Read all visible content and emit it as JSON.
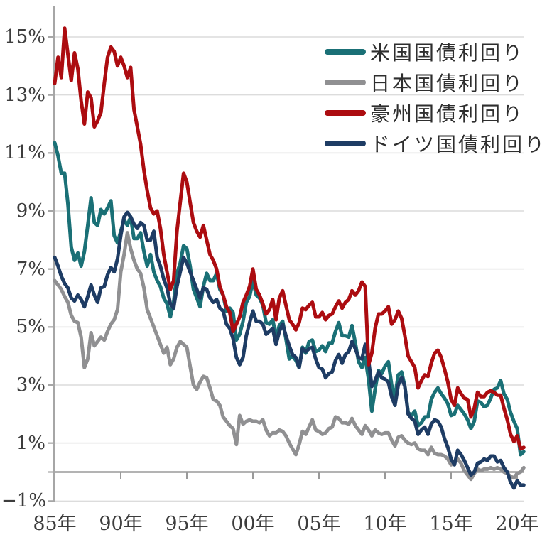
{
  "legend": {
    "items": [
      {
        "label": "米国国債利回り",
        "color": "#1a7076"
      },
      {
        "label": "日本国債利回り",
        "color": "#909092"
      },
      {
        "label": "豪州国債利回り",
        "color": "#ac0c10"
      },
      {
        "label": "ドイツ国債利回り",
        "color": "#1e3c64"
      }
    ]
  },
  "axes": {
    "y": {
      "ticks": [
        {
          "label": "15%",
          "value": 15
        },
        {
          "label": "13%",
          "value": 13
        },
        {
          "label": "11%",
          "value": 11
        },
        {
          "label": "9%",
          "value": 9
        },
        {
          "label": "7%",
          "value": 7
        },
        {
          "label": "5%",
          "value": 5
        },
        {
          "label": "3%",
          "value": 3
        },
        {
          "label": "1%",
          "value": 1
        },
        {
          "label": "−1%",
          "value": -1
        }
      ]
    },
    "x": {
      "ticks": [
        {
          "label": "85年",
          "year": 1985
        },
        {
          "label": "90年",
          "year": 1990
        },
        {
          "label": "95年",
          "year": 1995
        },
        {
          "label": "00年",
          "year": 2000
        },
        {
          "label": "05年",
          "year": 2005
        },
        {
          "label": "10年",
          "year": 2010
        },
        {
          "label": "15年",
          "year": 2015
        },
        {
          "label": "20年",
          "year": 2020
        }
      ]
    }
  },
  "chart_data": {
    "type": "line",
    "title": "",
    "xlabel": "",
    "ylabel": "",
    "ylim": [
      -1.4,
      15.6
    ],
    "x_start_year": 1985.0,
    "x_step_years": 0.25,
    "x_end_year": 2020.5,
    "grid": true,
    "gridline_values": [
      15,
      13,
      11,
      9,
      7,
      5,
      3,
      1,
      -1
    ],
    "zero_line_value": 0,
    "legend_position": "top-right",
    "colors": {
      "grid": "#dcdcdc",
      "axis": "#a6a6a6",
      "zero_line": "#9a9a9a"
    },
    "z_order": [
      1,
      0,
      3,
      2
    ],
    "series": [
      {
        "name": "米国国債利回り",
        "color": "#1a7076",
        "values": [
          11.35,
          10.9,
          10.3,
          10.3,
          9.25,
          7.75,
          7.3,
          7.55,
          7.1,
          7.6,
          8.5,
          9.45,
          8.6,
          8.5,
          9.05,
          8.9,
          9.1,
          9.35,
          8.15,
          7.9,
          8.3,
          8.7,
          8.5,
          8.8,
          8.05,
          8.05,
          8.25,
          7.6,
          7.1,
          7.5,
          6.9,
          6.6,
          6.4,
          6.0,
          5.8,
          5.35,
          5.85,
          6.85,
          7.2,
          7.8,
          7.7,
          7.1,
          6.3,
          6.0,
          5.7,
          6.4,
          6.85,
          6.6,
          6.6,
          6.85,
          6.3,
          6.1,
          5.55,
          5.65,
          5.5,
          4.55,
          4.75,
          5.2,
          5.85,
          6.05,
          6.6,
          6.1,
          6.0,
          5.75,
          5.15,
          5.1,
          5.25,
          4.65,
          5.05,
          5.2,
          4.6,
          3.9,
          4.0,
          3.85,
          3.6,
          4.3,
          4.1,
          4.5,
          4.55,
          4.15,
          4.2,
          4.35,
          4.15,
          4.45,
          4.45,
          4.85,
          5.15,
          4.7,
          4.7,
          4.65,
          5.05,
          4.45,
          3.8,
          3.6,
          3.95,
          3.2,
          2.1,
          2.85,
          3.5,
          3.4,
          3.65,
          3.8,
          3.0,
          2.6,
          3.35,
          3.45,
          2.95,
          2.05,
          1.95,
          2.1,
          1.6,
          1.7,
          1.9,
          1.9,
          2.5,
          2.75,
          2.9,
          2.7,
          2.55,
          2.35,
          1.95,
          2.0,
          2.3,
          2.15,
          2.0,
          1.8,
          1.5,
          1.75,
          2.45,
          2.4,
          2.25,
          2.3,
          2.55,
          2.85,
          2.9,
          3.15,
          2.7,
          2.5,
          2.05,
          1.75,
          1.5,
          0.6,
          0.7
        ]
      },
      {
        "name": "日本国債利回り",
        "color": "#909092",
        "values": [
          6.6,
          6.45,
          6.3,
          6.05,
          5.85,
          5.4,
          5.2,
          5.15,
          4.65,
          3.6,
          3.9,
          4.8,
          4.35,
          4.5,
          4.65,
          4.55,
          4.85,
          5.1,
          5.25,
          5.6,
          6.9,
          7.5,
          8.25,
          7.7,
          7.3,
          7.0,
          6.85,
          6.35,
          5.6,
          5.3,
          5.0,
          4.7,
          4.4,
          4.1,
          4.3,
          3.7,
          3.9,
          4.3,
          4.5,
          4.4,
          4.3,
          3.65,
          3.0,
          2.85,
          3.1,
          3.3,
          3.25,
          2.9,
          2.5,
          2.45,
          2.3,
          1.9,
          1.75,
          1.6,
          1.5,
          0.95,
          1.95,
          1.65,
          1.75,
          1.8,
          1.75,
          1.75,
          1.7,
          1.8,
          1.45,
          1.25,
          1.35,
          1.35,
          1.45,
          1.4,
          1.25,
          1.0,
          0.8,
          0.6,
          0.95,
          1.4,
          1.3,
          1.55,
          1.8,
          1.45,
          1.4,
          1.3,
          1.35,
          1.5,
          1.55,
          1.9,
          1.85,
          1.7,
          1.7,
          1.65,
          1.85,
          1.6,
          1.45,
          1.3,
          1.6,
          1.45,
          1.25,
          1.45,
          1.35,
          1.3,
          1.35,
          1.35,
          1.1,
          0.9,
          1.2,
          1.25,
          1.1,
          1.0,
          0.95,
          1.0,
          0.8,
          0.75,
          0.75,
          0.6,
          0.85,
          0.65,
          0.6,
          0.6,
          0.55,
          0.45,
          0.25,
          0.35,
          0.45,
          0.3,
          0.05,
          -0.1,
          -0.25,
          -0.05,
          0.1,
          0.05,
          0.1,
          0.1,
          0.15,
          0.1,
          0.15,
          0.1,
          0.0,
          -0.05,
          -0.15,
          -0.2,
          -0.05,
          0.0,
          0.15
        ]
      },
      {
        "name": "豪州国債利回り",
        "color": "#ac0c10",
        "values": [
          13.4,
          14.3,
          13.6,
          15.3,
          14.4,
          13.5,
          14.45,
          13.9,
          12.8,
          12.0,
          13.1,
          12.9,
          11.9,
          12.1,
          12.4,
          13.4,
          14.3,
          14.65,
          14.5,
          14.0,
          14.3,
          14.0,
          13.6,
          13.95,
          12.5,
          11.9,
          11.3,
          10.4,
          9.7,
          9.1,
          8.9,
          9.0,
          8.4,
          7.5,
          6.9,
          6.3,
          6.6,
          8.3,
          9.3,
          10.3,
          10.0,
          9.3,
          8.6,
          8.3,
          8.1,
          8.5,
          8.0,
          7.5,
          7.3,
          7.0,
          6.4,
          6.1,
          5.7,
          5.5,
          4.85,
          5.1,
          5.35,
          5.85,
          6.1,
          6.4,
          7.0,
          6.3,
          6.1,
          5.8,
          5.45,
          5.6,
          5.95,
          5.25,
          6.0,
          6.25,
          5.75,
          5.25,
          5.1,
          4.9,
          5.15,
          5.65,
          5.6,
          5.75,
          5.85,
          5.35,
          5.35,
          5.5,
          5.25,
          5.4,
          5.45,
          5.7,
          5.9,
          5.65,
          5.85,
          5.95,
          6.25,
          6.1,
          6.25,
          6.55,
          6.4,
          3.7,
          4.1,
          4.95,
          5.45,
          5.45,
          5.55,
          5.7,
          5.1,
          5.25,
          5.55,
          5.3,
          4.7,
          4.0,
          3.8,
          3.6,
          2.9,
          3.15,
          3.35,
          3.3,
          3.75,
          4.1,
          4.2,
          3.95,
          3.55,
          3.1,
          2.5,
          2.3,
          2.9,
          2.7,
          2.55,
          2.5,
          1.9,
          2.2,
          2.75,
          2.6,
          2.6,
          2.75,
          2.8,
          2.75,
          2.65,
          2.65,
          2.2,
          1.8,
          1.3,
          1.05,
          1.25,
          0.8,
          0.85
        ]
      },
      {
        "name": "ドイツ国債利回り",
        "color": "#1e3c64",
        "values": [
          7.4,
          7.1,
          6.75,
          6.5,
          6.35,
          6.0,
          5.9,
          6.1,
          5.95,
          5.7,
          6.05,
          6.45,
          6.1,
          5.85,
          6.35,
          6.4,
          6.8,
          7.05,
          6.9,
          7.35,
          8.15,
          8.8,
          8.95,
          8.8,
          8.55,
          8.4,
          8.6,
          8.5,
          8.0,
          8.0,
          8.3,
          7.4,
          7.1,
          6.65,
          6.35,
          5.8,
          5.65,
          6.4,
          6.9,
          7.4,
          7.2,
          6.9,
          6.6,
          6.3,
          6.0,
          6.35,
          6.3,
          6.0,
          5.85,
          5.95,
          5.65,
          5.55,
          5.1,
          4.95,
          4.6,
          3.95,
          3.7,
          3.95,
          4.7,
          5.15,
          5.55,
          5.2,
          5.2,
          5.1,
          4.75,
          4.85,
          4.95,
          4.4,
          4.85,
          5.1,
          4.7,
          4.35,
          4.05,
          3.95,
          3.6,
          4.25,
          4.15,
          4.25,
          4.3,
          3.9,
          3.6,
          3.55,
          3.25,
          3.4,
          3.45,
          3.85,
          4.05,
          3.75,
          4.05,
          4.15,
          4.5,
          4.25,
          3.95,
          3.9,
          4.4,
          3.85,
          2.95,
          3.15,
          3.45,
          3.25,
          3.2,
          3.1,
          2.6,
          2.3,
          3.0,
          3.25,
          2.95,
          2.0,
          1.85,
          1.75,
          1.3,
          1.45,
          1.55,
          1.3,
          1.65,
          1.8,
          1.75,
          1.55,
          1.15,
          0.85,
          0.45,
          0.25,
          0.75,
          0.6,
          0.4,
          0.15,
          -0.1,
          0.0,
          0.3,
          0.35,
          0.45,
          0.4,
          0.55,
          0.55,
          0.35,
          0.4,
          0.15,
          0.0,
          -0.35,
          -0.55,
          -0.3,
          -0.45,
          -0.45
        ]
      }
    ]
  }
}
